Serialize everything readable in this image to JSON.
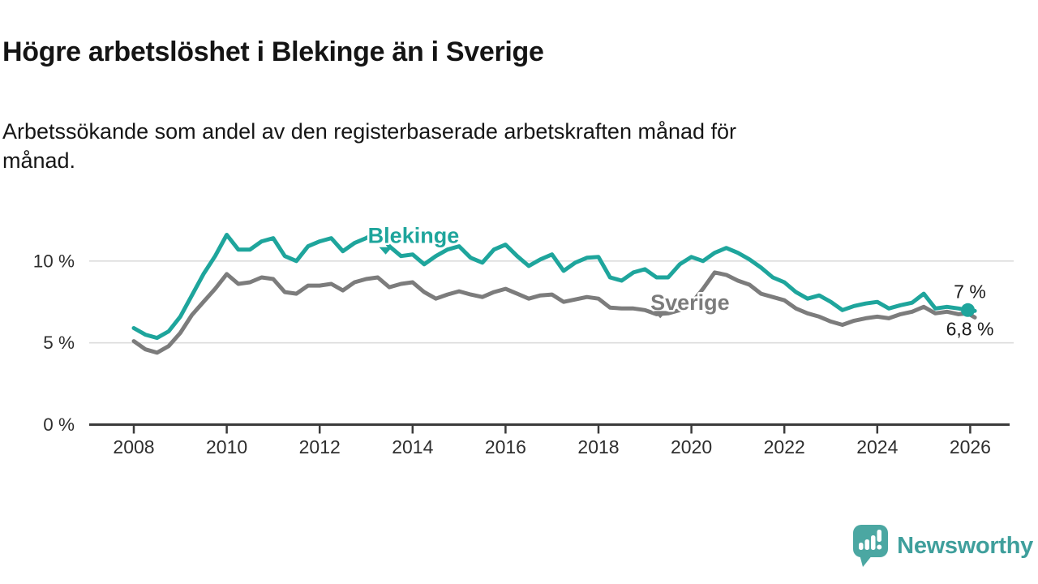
{
  "header": {
    "title": "Högre arbetslöshet i Blekinge än i Sverige",
    "subtitle": "Arbetssökande som andel av den registerbaserade arbetskraften månad för\nmånad."
  },
  "chart_data": {
    "type": "line",
    "title": "Högre arbetslöshet i Blekinge än i Sverige",
    "subtitle": "Arbetssökande som andel av den registerbaserade arbetskraften månad för månad.",
    "xlabel": "",
    "ylabel": "",
    "grid": "horizontal",
    "legend_position": "inline-labels",
    "xlim": [
      2007.05,
      2026.85
    ],
    "ylim": [
      0,
      12.6
    ],
    "x_tick_years": [
      2008,
      2010,
      2012,
      2014,
      2016,
      2018,
      2020,
      2022,
      2024,
      2026
    ],
    "y_ticks": [
      {
        "value": 0,
        "label": "0 %"
      },
      {
        "value": 5,
        "label": "5 %"
      },
      {
        "value": 10,
        "label": "10 %"
      }
    ],
    "x": [
      2008.0,
      2008.25,
      2008.5,
      2008.75,
      2009.0,
      2009.25,
      2009.5,
      2009.75,
      2010.0,
      2010.25,
      2010.5,
      2010.75,
      2011.0,
      2011.25,
      2011.5,
      2011.75,
      2012.0,
      2012.25,
      2012.5,
      2012.75,
      2013.0,
      2013.25,
      2013.5,
      2013.75,
      2014.0,
      2014.25,
      2014.5,
      2014.75,
      2015.0,
      2015.25,
      2015.5,
      2015.75,
      2016.0,
      2016.25,
      2016.5,
      2016.75,
      2017.0,
      2017.25,
      2017.5,
      2017.75,
      2018.0,
      2018.25,
      2018.5,
      2018.75,
      2019.0,
      2019.25,
      2019.5,
      2019.75,
      2020.0,
      2020.25,
      2020.5,
      2020.75,
      2021.0,
      2021.25,
      2021.5,
      2021.75,
      2022.0,
      2022.25,
      2022.5,
      2022.75,
      2023.0,
      2023.25,
      2023.5,
      2023.75,
      2024.0,
      2024.25,
      2024.5,
      2024.75,
      2025.0,
      2025.25,
      2025.5,
      2025.75,
      2025.95,
      2026.1
    ],
    "series": [
      {
        "name": "Sverige",
        "color": "#7c7c7c",
        "values": [
          5.1,
          4.6,
          4.4,
          4.8,
          5.6,
          6.7,
          7.5,
          8.3,
          9.2,
          8.6,
          8.7,
          9.0,
          8.9,
          8.1,
          8.0,
          8.5,
          8.5,
          8.6,
          8.2,
          8.7,
          8.9,
          9.0,
          8.4,
          8.6,
          8.7,
          8.1,
          7.7,
          7.95,
          8.15,
          7.95,
          7.8,
          8.1,
          8.3,
          8.0,
          7.7,
          7.9,
          7.95,
          7.5,
          7.65,
          7.8,
          7.7,
          7.15,
          7.1,
          7.1,
          7.0,
          6.75,
          6.8,
          7.0,
          7.4,
          8.3,
          9.3,
          9.15,
          8.8,
          8.55,
          8.0,
          7.8,
          7.6,
          7.1,
          6.8,
          6.6,
          6.3,
          6.1,
          6.35,
          6.5,
          6.6,
          6.5,
          6.75,
          6.9,
          7.2,
          6.8,
          6.9,
          6.75,
          6.8,
          6.55
        ],
        "label": {
          "text": "Sverige",
          "x": 2019.97,
          "y": 7.45,
          "marker_x": 2019.33,
          "marker_y": 6.75
        },
        "end_label": "6,8 %",
        "end_label_pos": "below",
        "end_dot": null
      },
      {
        "name": "Blekinge",
        "color": "#1ea59c",
        "values": [
          5.9,
          5.5,
          5.3,
          5.7,
          6.6,
          7.9,
          9.2,
          10.3,
          11.6,
          10.7,
          10.7,
          11.2,
          11.4,
          10.3,
          10.0,
          10.9,
          11.2,
          11.4,
          10.6,
          11.1,
          11.4,
          11.8,
          10.9,
          10.3,
          10.4,
          9.8,
          10.3,
          10.7,
          10.9,
          10.2,
          9.9,
          10.7,
          11.0,
          10.3,
          9.7,
          10.1,
          10.4,
          9.4,
          9.9,
          10.2,
          10.25,
          9.0,
          8.8,
          9.3,
          9.5,
          9.0,
          9.0,
          9.8,
          10.25,
          10.0,
          10.5,
          10.8,
          10.5,
          10.1,
          9.6,
          9.0,
          8.7,
          8.1,
          7.7,
          7.9,
          7.5,
          7.0,
          7.25,
          7.4,
          7.5,
          7.1,
          7.3,
          7.45,
          8.0,
          7.1,
          7.2,
          7.1,
          7.0,
          6.95
        ],
        "label": {
          "text": "Blekinge",
          "x": 2014.02,
          "y": 11.55,
          "marker_x": 2013.42,
          "marker_y": 10.65
        },
        "end_label": "7 %",
        "end_label_pos": "above",
        "end_dot": {
          "x": 2025.95,
          "y": 7.0
        }
      }
    ]
  },
  "footer": {
    "brand": "Newsworthy"
  }
}
